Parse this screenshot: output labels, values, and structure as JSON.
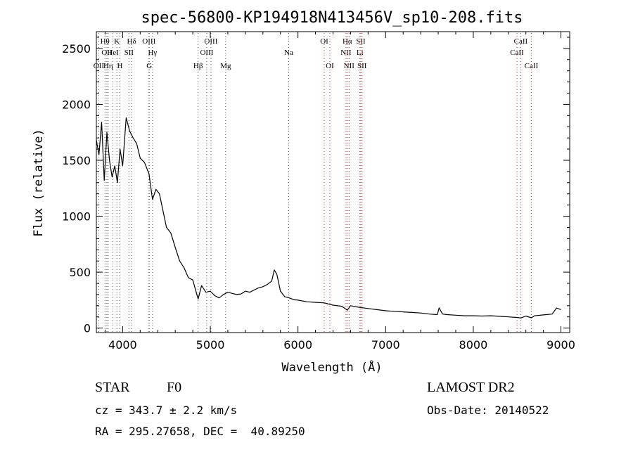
{
  "chart_data": {
    "type": "line",
    "title": "spec-56800-KP194918N413456V_sp10-208.fits",
    "xlabel": "Wavelength (Å)",
    "ylabel": "Flux (relative)",
    "xlim": [
      3700,
      9100
    ],
    "ylim": [
      -40,
      2650
    ],
    "xticks": [
      4000,
      5000,
      6000,
      7000,
      8000,
      9000
    ],
    "yticks": [
      0,
      500,
      1000,
      1500,
      2000,
      2500
    ],
    "grid": false,
    "series": [
      {
        "color": "#000000",
        "x": [
          3700,
          3730,
          3760,
          3790,
          3820,
          3850,
          3880,
          3910,
          3940,
          3970,
          4000,
          4040,
          4080,
          4120,
          4160,
          4200,
          4250,
          4300,
          4340,
          4380,
          4420,
          4460,
          4500,
          4550,
          4600,
          4650,
          4700,
          4750,
          4800,
          4861,
          4900,
          4950,
          5000,
          5050,
          5100,
          5150,
          5200,
          5250,
          5300,
          5350,
          5400,
          5450,
          5500,
          5550,
          5600,
          5650,
          5700,
          5730,
          5760,
          5800,
          5850,
          5900,
          5950,
          6000,
          6100,
          6200,
          6300,
          6400,
          6500,
          6563,
          6600,
          6700,
          6800,
          6900,
          7000,
          7100,
          7200,
          7300,
          7400,
          7500,
          7590,
          7610,
          7650,
          7700,
          7800,
          7900,
          8000,
          8100,
          8200,
          8300,
          8400,
          8498,
          8542,
          8600,
          8662,
          8700,
          8800,
          8900,
          8950,
          9000
        ],
        "values": [
          1680,
          1550,
          1840,
          1320,
          1750,
          1500,
          1350,
          1450,
          1300,
          1600,
          1450,
          1880,
          1760,
          1700,
          1650,
          1520,
          1480,
          1380,
          1150,
          1240,
          1200,
          1050,
          900,
          850,
          720,
          600,
          540,
          450,
          430,
          260,
          380,
          320,
          330,
          290,
          270,
          300,
          320,
          310,
          300,
          305,
          330,
          320,
          340,
          360,
          370,
          390,
          420,
          520,
          480,
          330,
          280,
          270,
          255,
          250,
          235,
          230,
          225,
          205,
          195,
          160,
          200,
          185,
          175,
          165,
          155,
          150,
          145,
          140,
          135,
          125,
          120,
          180,
          125,
          120,
          115,
          110,
          110,
          108,
          110,
          105,
          100,
          95,
          90,
          108,
          92,
          110,
          118,
          125,
          180,
          165
        ]
      }
    ],
    "lines": [
      {
        "name": "OII",
        "wl": 3727,
        "row": 3
      },
      {
        "name": "Hθ",
        "wl": 3798,
        "row": 1
      },
      {
        "name": "OII",
        "wl": 3820,
        "row": 2
      },
      {
        "name": "Hη",
        "wl": 3835,
        "row": 3
      },
      {
        "name": "HeI",
        "wl": 3889,
        "row": 2
      },
      {
        "name": "K",
        "wl": 3934,
        "row": 1
      },
      {
        "name": "SII",
        "wl": 4072,
        "row": 2
      },
      {
        "name": "H",
        "wl": 3969,
        "row": 3
      },
      {
        "name": "Hδ",
        "wl": 4102,
        "row": 1
      },
      {
        "name": "OIII",
        "wl": 4300,
        "row": 1
      },
      {
        "name": "Hγ",
        "wl": 4341,
        "row": 2
      },
      {
        "name": "G",
        "wl": 4304,
        "row": 3
      },
      {
        "name": "Hβ",
        "wl": 4861,
        "row": 3
      },
      {
        "name": "OIII",
        "wl": 4959,
        "row": 2
      },
      {
        "name": "OIII",
        "wl": 5007,
        "row": 1
      },
      {
        "name": "Mg",
        "wl": 5175,
        "row": 3
      },
      {
        "name": "Na",
        "wl": 5894,
        "row": 2
      },
      {
        "name": "OI",
        "wl": 6300,
        "row": 1
      },
      {
        "name": "OI",
        "wl": 6364,
        "row": 3
      },
      {
        "name": "NII",
        "wl": 6548,
        "row": 2
      },
      {
        "name": "Hα",
        "wl": 6563,
        "row": 1
      },
      {
        "name": "NII",
        "wl": 6583,
        "row": 3
      },
      {
        "name": "SII",
        "wl": 6717,
        "row": 1
      },
      {
        "name": "Li",
        "wl": 6707,
        "row": 2
      },
      {
        "name": "SII",
        "wl": 6731,
        "row": 3
      },
      {
        "name": "CaII",
        "wl": 8498,
        "row": 2
      },
      {
        "name": "CaII",
        "wl": 8542,
        "row": 1
      },
      {
        "name": "CaII",
        "wl": 8662,
        "row": 3
      }
    ]
  },
  "footer": {
    "object_class": "STAR",
    "subclass": "F0",
    "survey": "LAMOST DR2",
    "cz": "cz = 343.7 ± 2.2 km/s",
    "obs_date": "Obs-Date: 20140522",
    "coords": "RA = 295.27658, DEC =  40.89250"
  }
}
